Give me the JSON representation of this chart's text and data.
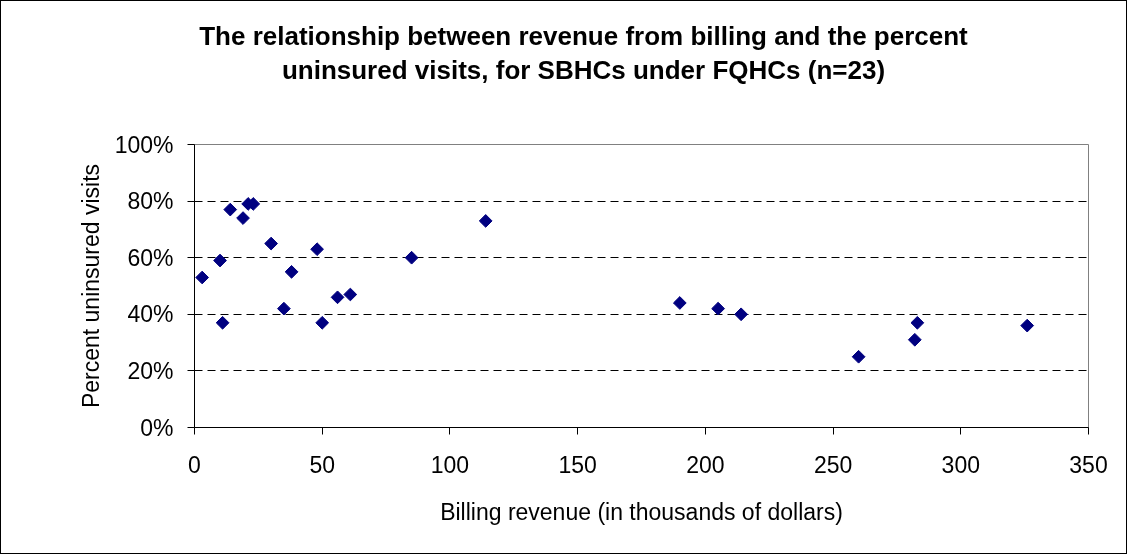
{
  "chart_data": {
    "type": "scatter",
    "title": "The relationship between revenue from billing and the percent uninsured visits, for SBHCs under FQHCs (n=23)",
    "xlabel": "Billing revenue (in thousands of dollars)",
    "ylabel": "Percent uninsured visits",
    "x": [
      3,
      10,
      11,
      14,
      19,
      21,
      23,
      30,
      35,
      38,
      48,
      50,
      56,
      61,
      85,
      114,
      190,
      205,
      214,
      260,
      282,
      283,
      326
    ],
    "values": [
      53,
      59,
      37,
      77,
      74,
      79,
      79,
      65,
      42,
      55,
      63,
      37,
      46,
      47,
      60,
      73,
      44,
      42,
      40,
      25,
      31,
      37,
      36
    ],
    "color": "#000080",
    "marker": "diamond",
    "xlim": [
      0,
      350
    ],
    "xticks": [
      0,
      50,
      100,
      150,
      200,
      250,
      300,
      350
    ],
    "ylim": [
      0,
      100
    ],
    "yticks": [
      {
        "value": 0,
        "label": "0%"
      },
      {
        "value": 20,
        "label": "20%"
      },
      {
        "value": 40,
        "label": "40%"
      },
      {
        "value": 60,
        "label": "60%"
      },
      {
        "value": 80,
        "label": "80%"
      },
      {
        "value": 100,
        "label": "100%"
      }
    ],
    "grid": "y"
  }
}
